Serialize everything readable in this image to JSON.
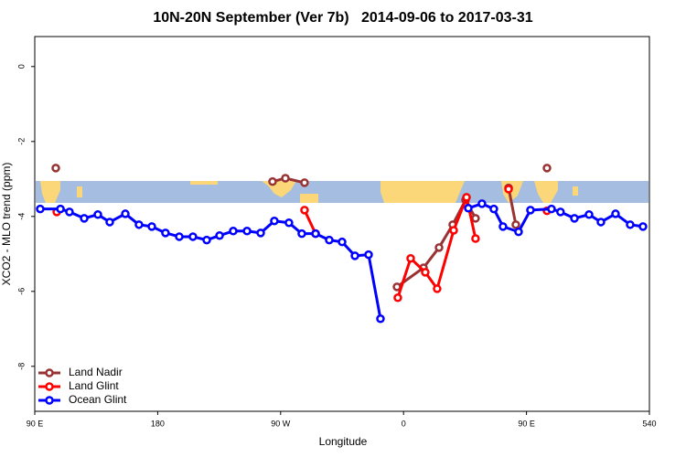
{
  "chart_data": {
    "type": "line",
    "title": "10N-20N September (Ver 7b)   2014-09-06 to 2017-03-31",
    "x_label": "Longitude",
    "y_label": "XCO2 - MLO trend (ppm)",
    "xlim": [
      90,
      540
    ],
    "ylim": [
      -9.2,
      0.8
    ],
    "xticks": [
      {
        "value": 90,
        "label": "90 E"
      },
      180,
      {
        "value": 270,
        "label": "90 W"
      },
      {
        "value": 360,
        "label": "0"
      },
      {
        "value": 450,
        "label": "90 E"
      },
      540
    ],
    "yticks": [
      0,
      -2,
      -4,
      -6,
      -8
    ],
    "legend": "bottom-left",
    "series": [
      {
        "name": "Land Nadir",
        "color": "#993333",
        "x": [
          105.4,
          200,
          264.1,
          273.5,
          287.5,
          320,
          355.2,
          374.6,
          386.0,
          396.0,
          405.4,
          412.7,
          425,
          436.9,
          442.2,
          455,
          465.0
        ],
        "values": [
          -2.71,
          null,
          -3.07,
          -2.98,
          -3.1,
          null,
          -5.88,
          -5.37,
          -4.83,
          -4.22,
          -3.56,
          -4.05,
          null,
          -3.24,
          -4.22,
          null,
          -2.71
        ]
      },
      {
        "name": "Land Glint",
        "color": "#ff0000",
        "x": [
          106.1,
          200,
          287.5,
          295.6,
          330,
          355.8,
          365.2,
          375.9,
          384.6,
          396.7,
          406.1,
          412.7,
          425,
          436.9,
          450,
          465.0
        ],
        "values": [
          -3.88,
          null,
          -3.83,
          -4.46,
          null,
          -6.17,
          -5.12,
          -5.49,
          -5.93,
          -4.37,
          -3.49,
          -4.59,
          null,
          -3.27,
          null,
          -3.85
        ]
      },
      {
        "name": "Ocean Glint",
        "color": "#0000ff",
        "x": [
          94.0,
          108.8,
          115.4,
          126.2,
          136.2,
          144.9,
          156.3,
          166.3,
          175.7,
          185.7,
          195.8,
          205.8,
          215.9,
          225.3,
          235.3,
          245.4,
          255.4,
          265.4,
          276.1,
          285.5,
          295.6,
          305.6,
          315.0,
          324.4,
          334.4,
          343.1,
          375,
          407.4,
          417.4,
          426.1,
          432.8,
          444.2,
          452.9,
          468.3,
          474.9,
          485.1,
          495.8,
          504.5,
          515.2,
          525.9,
          535.3
        ],
        "values": [
          -3.8,
          -3.8,
          -3.88,
          -4.05,
          -3.95,
          -4.15,
          -3.93,
          -4.22,
          -4.27,
          -4.44,
          -4.54,
          -4.54,
          -4.63,
          -4.51,
          -4.39,
          -4.39,
          -4.44,
          -4.12,
          -4.17,
          -4.46,
          -4.46,
          -4.63,
          -4.68,
          -5.05,
          -5.02,
          -6.73,
          null,
          -3.78,
          -3.66,
          -3.8,
          -4.27,
          -4.41,
          -3.83,
          -3.8,
          -3.88,
          -4.05,
          -3.95,
          -4.15,
          -3.93,
          -4.22,
          -4.27
        ]
      }
    ]
  }
}
